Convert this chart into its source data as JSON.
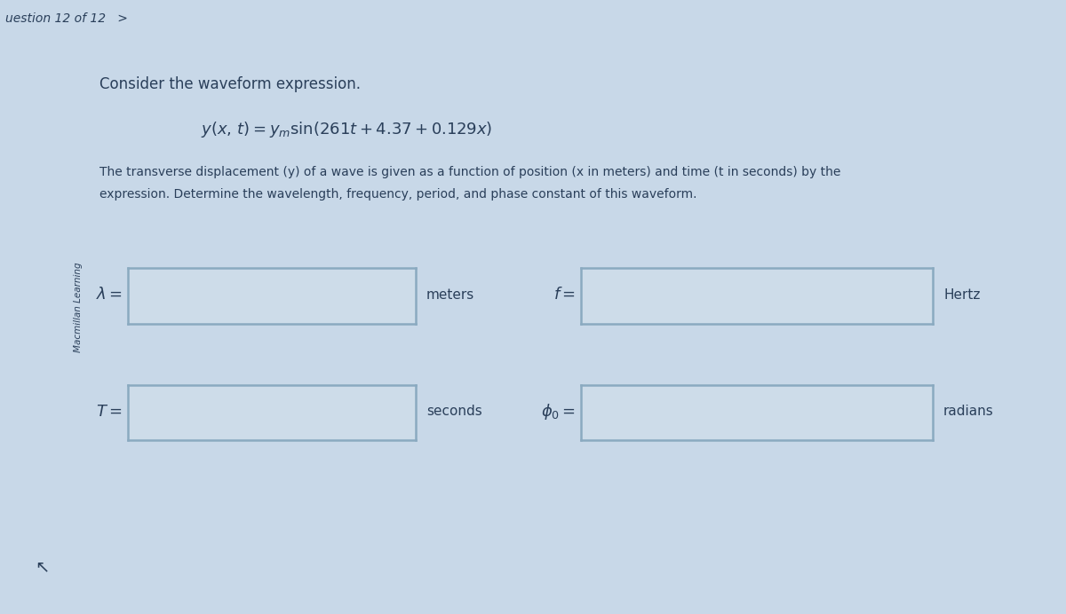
{
  "bg_outer": "#c8d8e8",
  "bg_header": "#d0dce8",
  "bg_panel": "#b8cede",
  "box_fill": "#cddce9",
  "box_edge": "#8aaac0",
  "text_color": "#2a3f5a",
  "header_text": "uestion 12 of 12   >",
  "sidebar_text": "Macmillan Learning",
  "main_title": "Consider the waveform expression.",
  "description_line1": "The transverse displacement (y) of a wave is given as a function of position (x in meters) and time (t in seconds) by the",
  "description_line2": "expression. Determine the wavelength, frequency, period, and phase constant of this waveform.",
  "unit1": "meters",
  "unit2": "Hertz",
  "unit3": "seconds",
  "unit4": "radians"
}
